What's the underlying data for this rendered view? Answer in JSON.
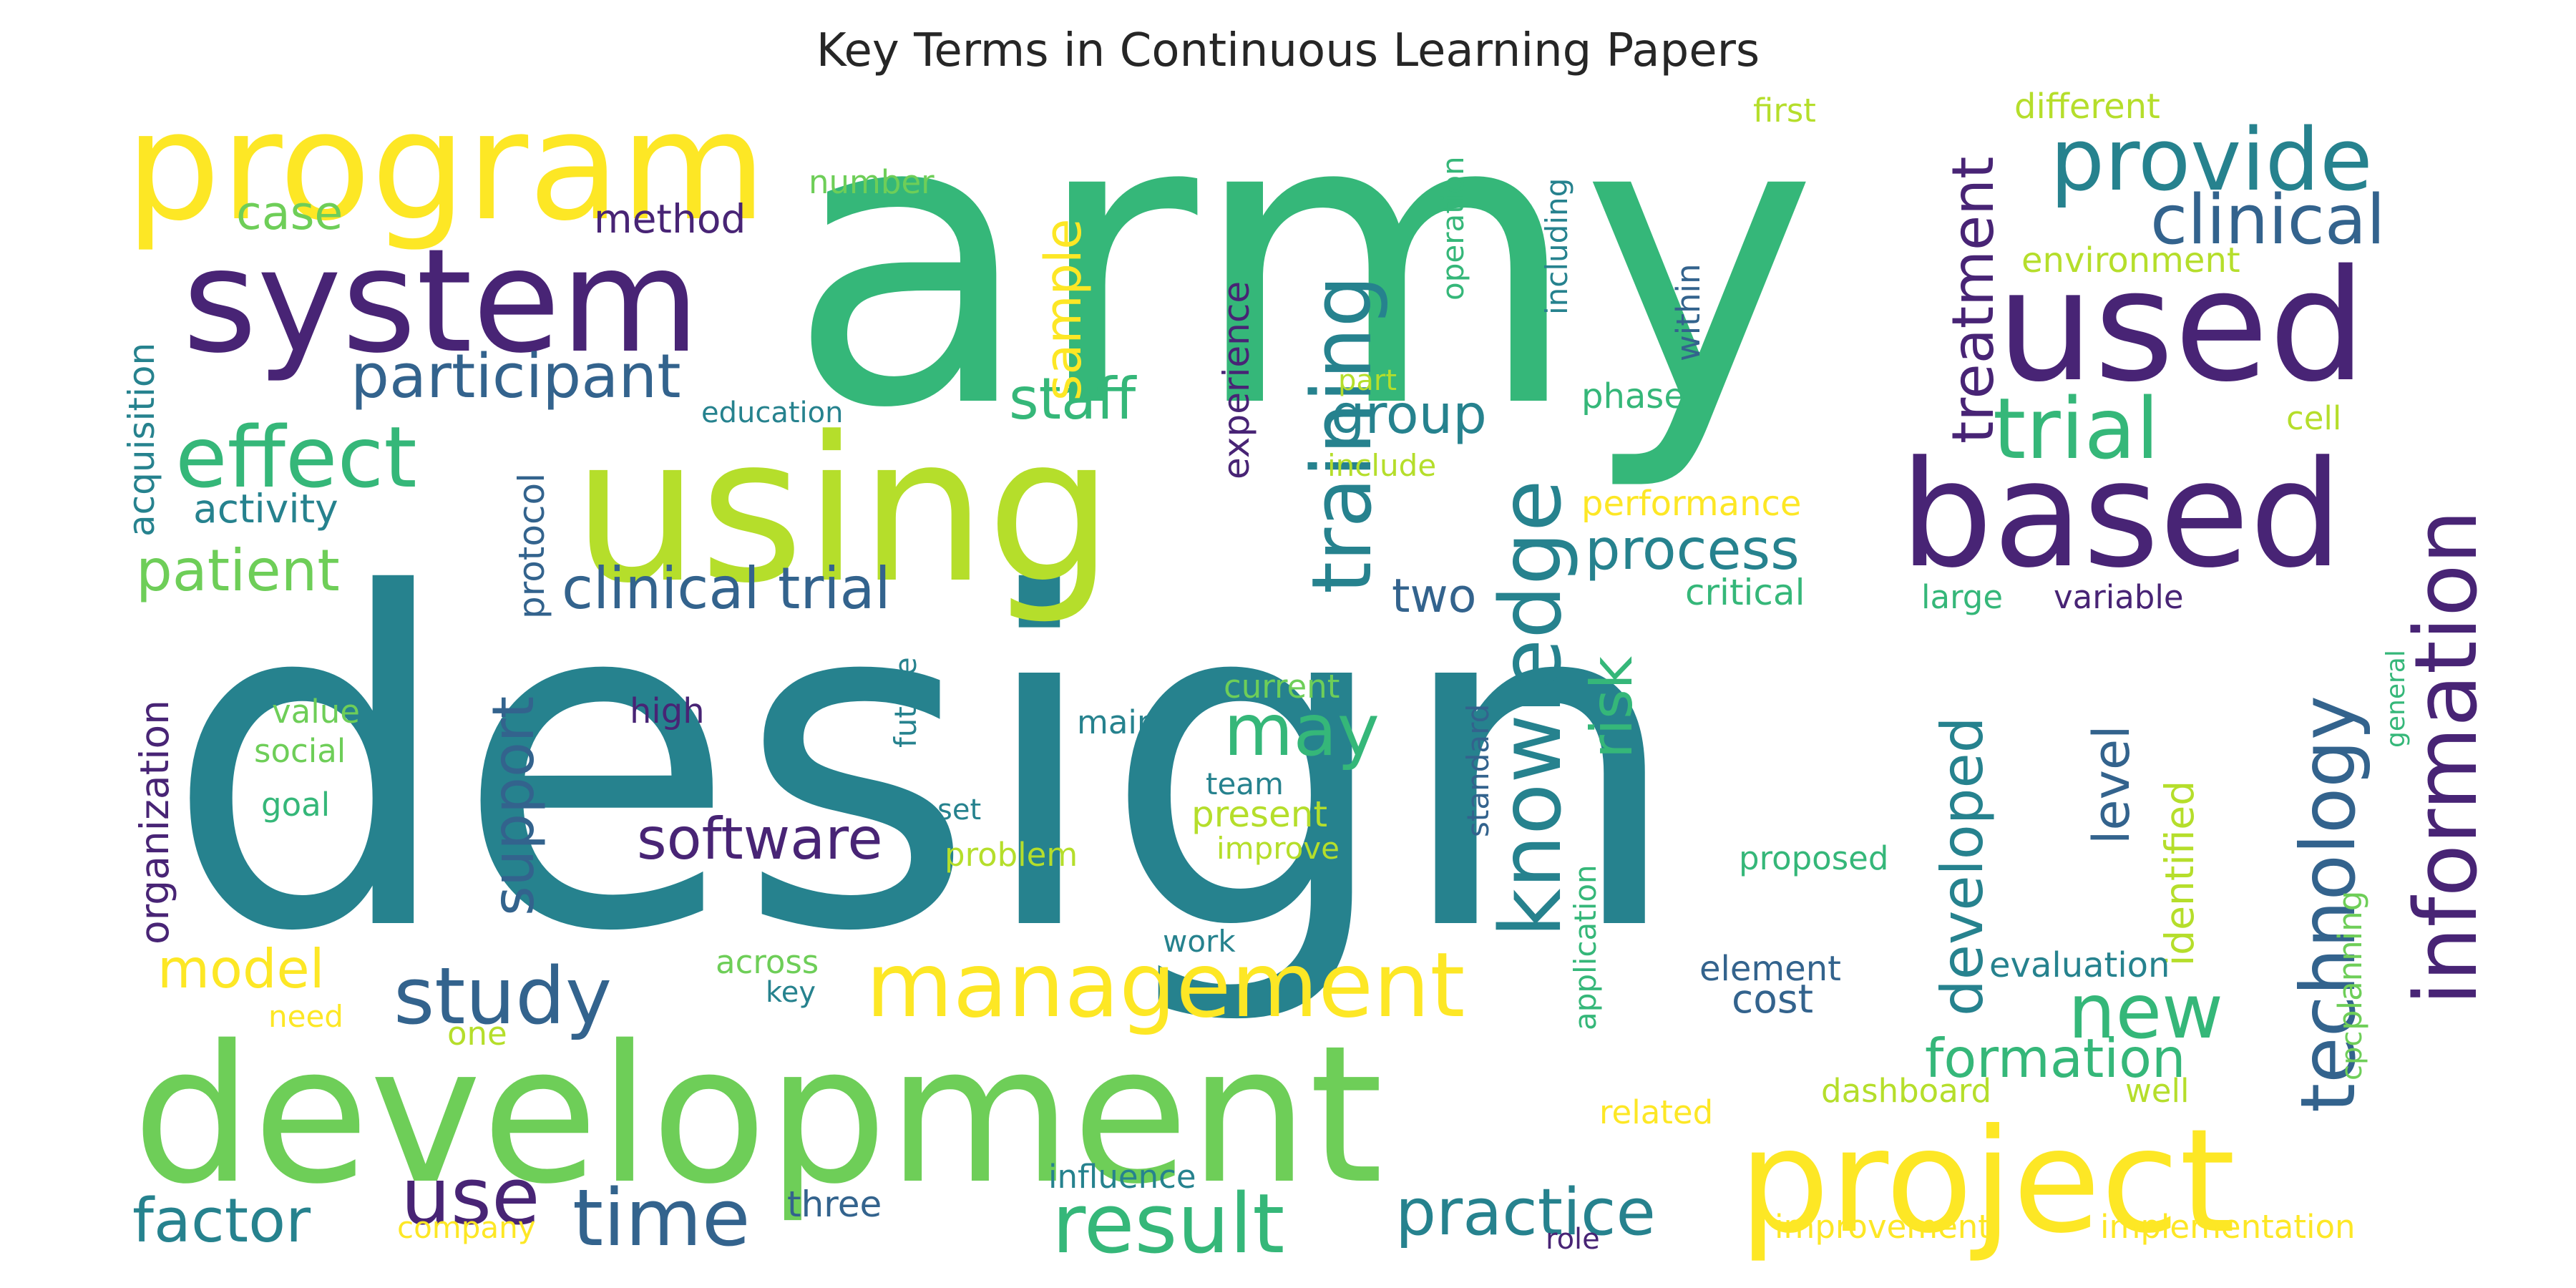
{
  "title": "Key Terms in Continuous Learning Papers",
  "palette": {
    "dark_purple": "#482475",
    "blue": "#33638d",
    "teal": "#26828e",
    "green": "#35b779",
    "light_green": "#6ece58",
    "yellow_green": "#b5de2b",
    "yellow": "#fde725"
  },
  "words": [
    "army",
    "design",
    "development",
    "using",
    "program",
    "system",
    "used",
    "based",
    "project",
    "management",
    "information",
    "training",
    "knowledge",
    "provide",
    "effect",
    "trial",
    "clinical",
    "participant",
    "technology",
    "study",
    "result",
    "time",
    "use",
    "new",
    "practice",
    "factor",
    "may",
    "software",
    "clinical trial",
    "patient",
    "treatment",
    "process",
    "staff",
    "group",
    "developed",
    "formation",
    "support",
    "risk",
    "model",
    "level",
    "sample",
    "case",
    "method",
    "activity",
    "protocol",
    "acquisition",
    "organization",
    "experience",
    "two",
    "cost",
    "element",
    "identified",
    "planning",
    "performance",
    "critical",
    "environment",
    "different",
    "first",
    "number",
    "operation",
    "including",
    "within",
    "phase",
    "part",
    "include",
    "education",
    "cell",
    "variable",
    "large",
    "current",
    "main",
    "high",
    "value",
    "social",
    "goal",
    "future",
    "team",
    "set",
    "present",
    "problem",
    "improve",
    "proposed",
    "standard",
    "application",
    "general",
    "cpc",
    "evaluation",
    "work",
    "across",
    "key",
    "one",
    "need",
    "dashboard",
    "well",
    "related",
    "influence",
    "three",
    "company",
    "role",
    "improvement",
    "implementation"
  ]
}
